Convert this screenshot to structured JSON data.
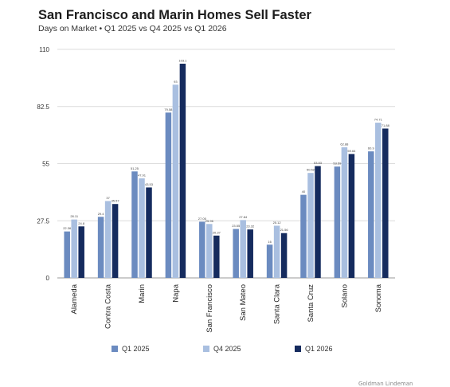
{
  "header": {
    "title": "San Francisco and Marin Homes Sell Faster",
    "subtitle": "Days on Market • Q1 2025 vs Q4 2025 vs Q1 2026"
  },
  "chart_data": {
    "type": "bar",
    "title": "San Francisco and Marin Homes Sell Faster",
    "subtitle": "Days on Market • Q1 2025 vs Q4 2025 vs Q1 2026",
    "xlabel": "",
    "ylabel": "",
    "ylim": [
      0,
      110
    ],
    "yticks": [
      0,
      27.5,
      55,
      82.5,
      110
    ],
    "ytick_labels": [
      "0",
      "27.5",
      "55",
      "82.5",
      "110"
    ],
    "grid": true,
    "legend_position": "bottom",
    "categories": [
      "Alameda",
      "Contra Costa",
      "Marin",
      "Napa",
      "San Francisco",
      "San Mateo",
      "Santa Clara",
      "Santa Cruz",
      "Solano",
      "Sonoma"
    ],
    "series": [
      {
        "name": "Q1 2025",
        "color": "#6b8bc0",
        "values": [
          22.36,
          29.4,
          51.25,
          79.58,
          27.05,
          23.55,
          16,
          40,
          53.59,
          60.9
        ],
        "labels": [
          "22.36",
          "29.4",
          "51.25",
          "79.58",
          "27.05",
          "23.55",
          "16",
          "40",
          "53.59",
          "60.9"
        ]
      },
      {
        "name": "Q4 2025",
        "color": "#a9bfe0",
        "values": [
          28.11,
          37,
          47.91,
          93,
          25.96,
          27.84,
          25.12,
          50.52,
          62.88,
          74.71
        ],
        "labels": [
          "28.11",
          "37",
          "47.91",
          "93",
          "25.96",
          "27.84",
          "25.12",
          "50.52",
          "62.88",
          "74.71"
        ]
      },
      {
        "name": "Q1 2026",
        "color": "#152b5e",
        "values": [
          24.8,
          35.57,
          43.53,
          103.1,
          20.37,
          23.32,
          21.56,
          53.83,
          59.64,
          71.88
        ],
        "labels": [
          "24.8",
          "35.57",
          "43.53",
          "103.1",
          "20.37",
          "23.32",
          "21.56",
          "53.83",
          "59.64",
          "71.88"
        ]
      }
    ]
  },
  "footer": {
    "credit": "Goldman Lindeman"
  }
}
